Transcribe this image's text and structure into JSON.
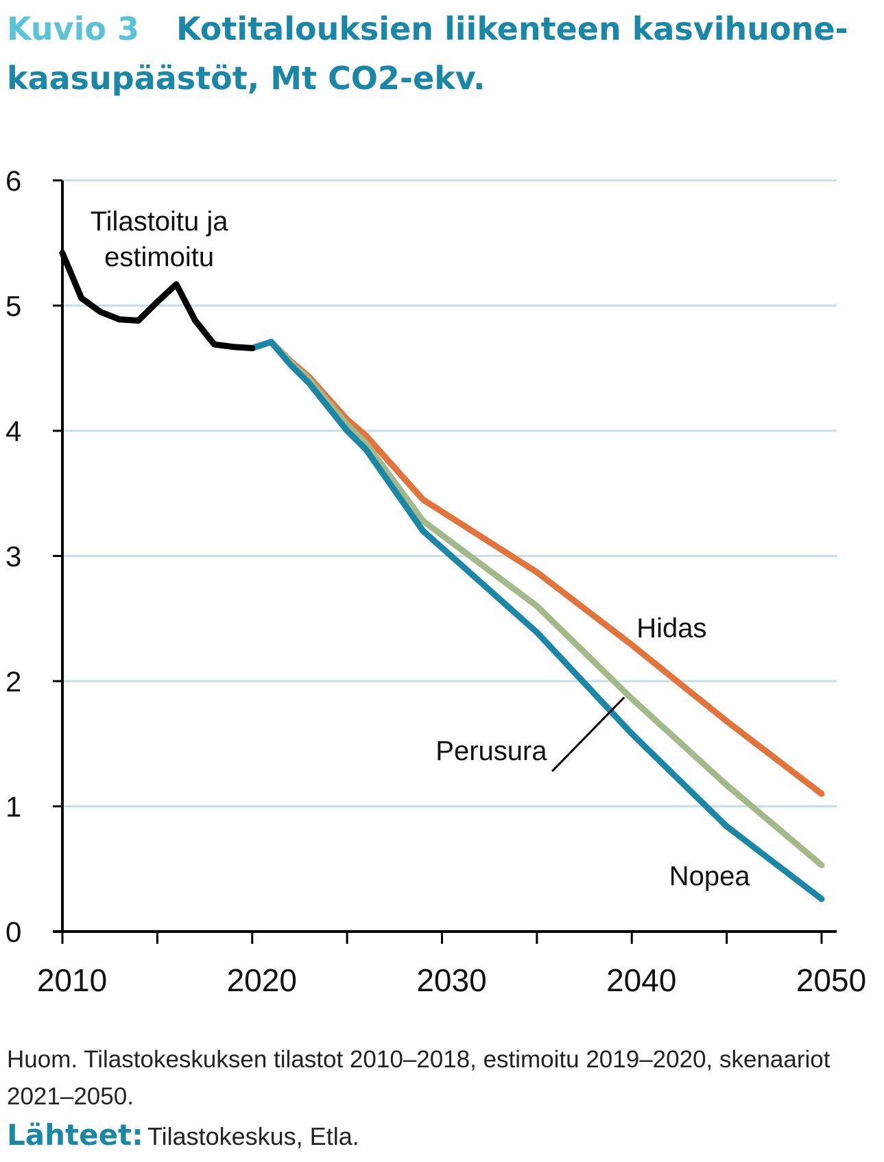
{
  "header": {
    "figure_label": "Kuvio 3",
    "title": "Kotitalouksien liikenteen kasvihuone-kaasupäästöt, Mt CO2-ekv."
  },
  "chart_data": {
    "type": "line",
    "xlim": [
      2009.5,
      2050.5
    ],
    "ylim": [
      0,
      6
    ],
    "x_ticks": [
      2010,
      2020,
      2030,
      2040,
      2050
    ],
    "x_minor_ticks": [
      2010,
      2015,
      2020,
      2025,
      2030,
      2035,
      2040,
      2045,
      2050
    ],
    "y_ticks": [
      0,
      1,
      2,
      3,
      4,
      5,
      6
    ],
    "grid": "horizontal",
    "series": [
      {
        "name": "Tilastoitu ja estimoitu",
        "color": "#000000",
        "x": [
          2010,
          2011,
          2012,
          2013,
          2014,
          2015,
          2016,
          2017,
          2018,
          2019,
          2020
        ],
        "y": [
          5.42,
          5.06,
          4.95,
          4.89,
          4.88,
          5.03,
          5.17,
          4.88,
          4.69,
          4.67,
          4.66
        ]
      },
      {
        "name": "Hidas",
        "color": "#e2733a",
        "x": [
          2020,
          2021,
          2022,
          2023,
          2025,
          2026,
          2029,
          2035,
          2040,
          2045,
          2050
        ],
        "y": [
          4.66,
          4.71,
          4.56,
          4.43,
          4.09,
          3.96,
          3.45,
          2.87,
          2.29,
          1.68,
          1.1
        ]
      },
      {
        "name": "Perusura",
        "color": "#a3b98a",
        "x": [
          2020,
          2021,
          2022,
          2023,
          2025,
          2026,
          2029,
          2035,
          2040,
          2045,
          2050
        ],
        "y": [
          4.66,
          4.71,
          4.55,
          4.41,
          4.05,
          3.9,
          3.28,
          2.6,
          1.86,
          1.17,
          0.53
        ]
      },
      {
        "name": "Nopea",
        "color": "#1b87a6",
        "x": [
          2020,
          2021,
          2022,
          2023,
          2025,
          2026,
          2029,
          2035,
          2040,
          2045,
          2050
        ],
        "y": [
          4.66,
          4.71,
          4.53,
          4.38,
          4.0,
          3.85,
          3.2,
          2.39,
          1.58,
          0.84,
          0.26
        ]
      }
    ],
    "annotations": [
      {
        "id": "hist",
        "lines": [
          "Tilastoitu ja",
          "estimoitu"
        ],
        "x": 2015.1,
        "y": 5.6
      },
      {
        "id": "hidas",
        "lines": [
          "Hidas"
        ],
        "x": 2042.1,
        "y": 2.35
      },
      {
        "id": "perusura",
        "lines": [
          "Perusura"
        ],
        "x": 2032.6,
        "y": 1.37
      },
      {
        "id": "nopea",
        "lines": [
          "Nopea"
        ],
        "x": 2044.1,
        "y": 0.37
      }
    ]
  },
  "footer": {
    "note": "Huom. Tilastokeskuksen tilastot 2010–2018, estimoitu 2019–2020, skenaariot 2021–2050.",
    "sources_label": "Lähteet:",
    "sources_text": "Tilastokeskus, Etla."
  }
}
